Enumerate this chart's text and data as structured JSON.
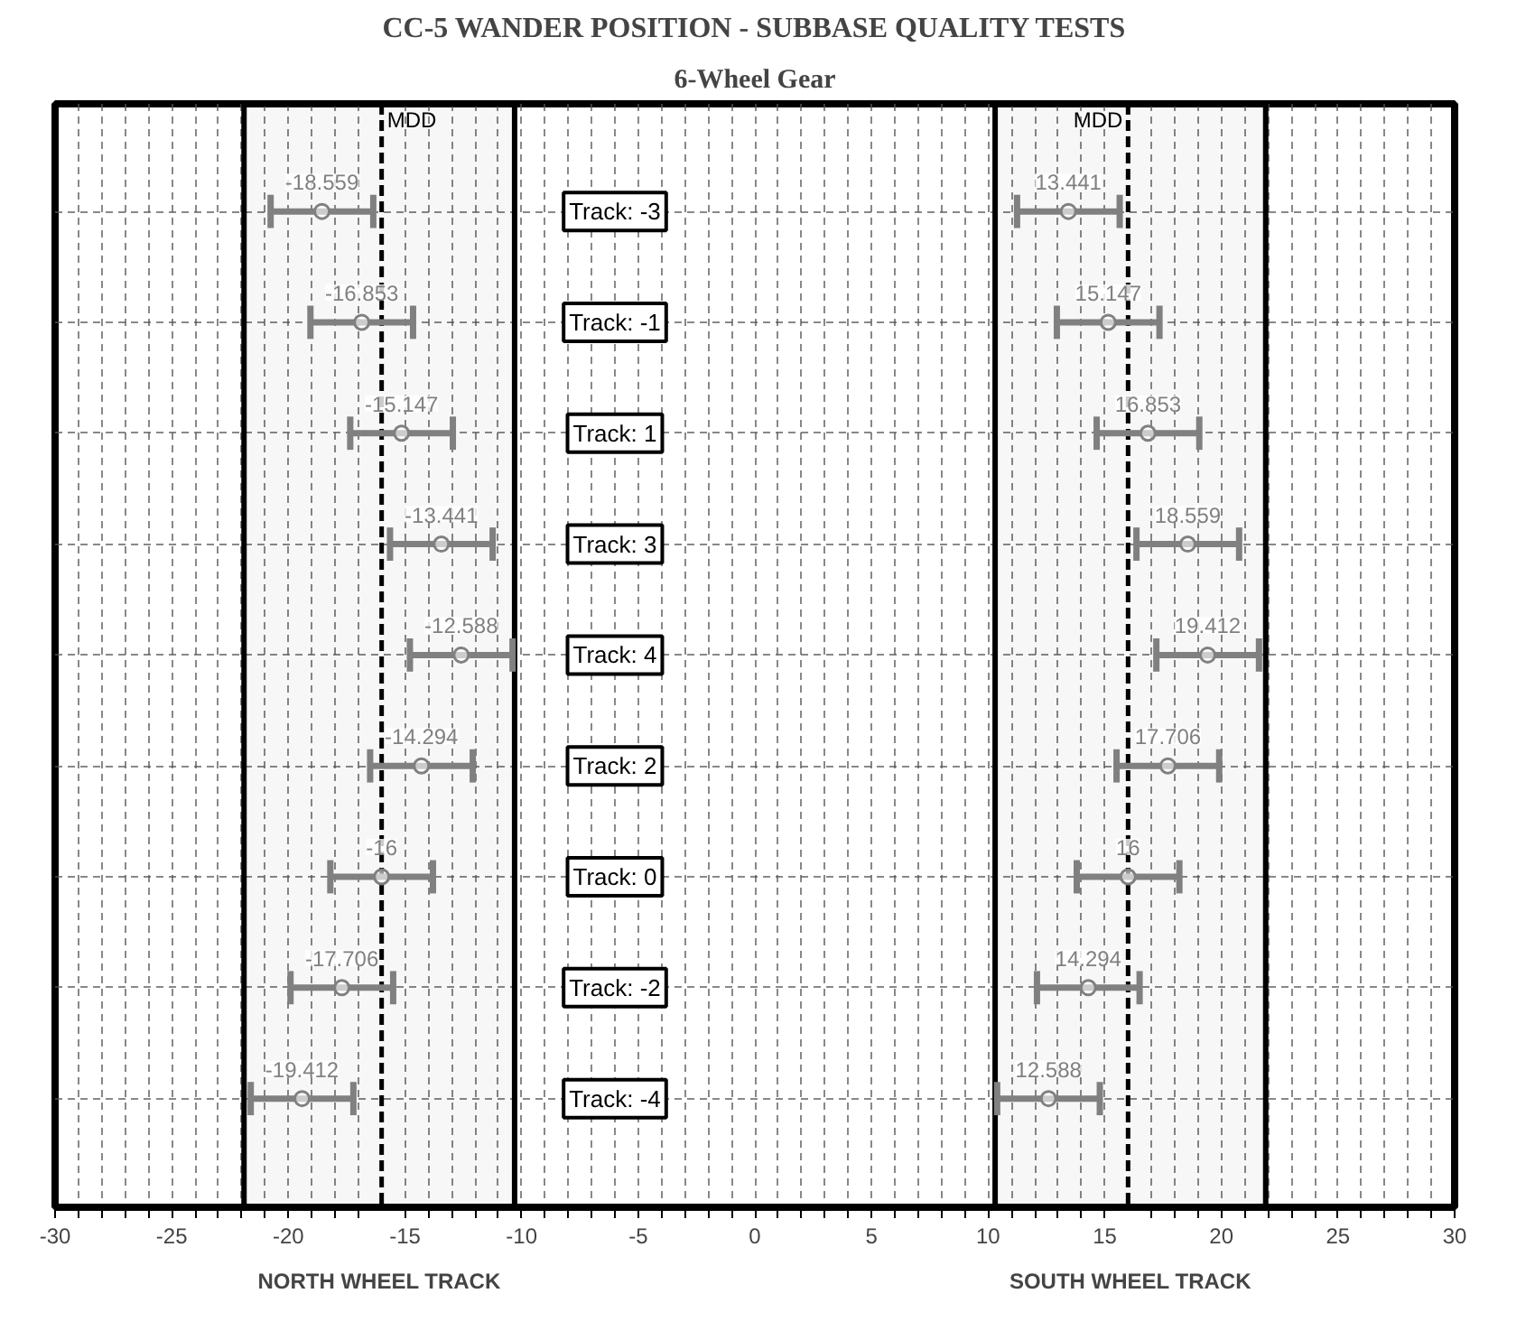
{
  "chart_data": {
    "type": "scatter",
    "orientation": "horizontal",
    "title": "CC-5 WANDER POSITION - SUBBASE QUALITY TESTS",
    "subtitle": "6-Wheel Gear",
    "categories": [
      "Track: -3",
      "Track: -1",
      "Track: 1",
      "Track: 3",
      "Track: 4",
      "Track: 2",
      "Track: 0",
      "Track: -2",
      "Track: -4"
    ],
    "series": [
      {
        "color": "#808080",
        "values": [
          -18.559,
          -16.853,
          -15.147,
          -13.441,
          -12.588,
          -14.294,
          -16,
          -17.706,
          -19.412
        ],
        "errors": [
          2.2,
          2.2,
          2.2,
          2.2,
          2.2,
          2.2,
          2.2,
          2.2,
          2.2
        ]
      },
      {
        "color": "#808080",
        "values": [
          13.441,
          15.147,
          16.853,
          18.559,
          19.412,
          17.706,
          16,
          14.294,
          12.588
        ],
        "errors": [
          2.2,
          2.2,
          2.2,
          2.2,
          2.2,
          2.2,
          2.2,
          2.2,
          2.2
        ]
      }
    ],
    "xlim": [
      -30,
      30
    ],
    "xticks": [
      -30,
      {
        "value": -29,
        "label": null
      },
      {
        "value": -28,
        "label": null
      },
      {
        "value": -27,
        "label": null
      },
      {
        "value": -26,
        "label": null
      },
      -25,
      {
        "value": -24,
        "label": null
      },
      {
        "value": -23,
        "label": null
      },
      {
        "value": -22,
        "label": null
      },
      {
        "value": -21,
        "label": null
      },
      -20,
      {
        "value": -19,
        "label": null
      },
      {
        "value": -18,
        "label": null
      },
      {
        "value": -17,
        "label": null
      },
      -15,
      {
        "value": -14,
        "label": null
      },
      {
        "value": -13,
        "label": null
      },
      {
        "value": -12,
        "label": null
      },
      {
        "value": -11,
        "label": null
      },
      -10,
      {
        "value": -9,
        "label": null
      },
      {
        "value": -8,
        "label": null
      },
      {
        "value": -7,
        "label": null
      },
      {
        "value": -6,
        "label": null
      },
      -5,
      {
        "value": -4,
        "label": null
      },
      {
        "value": -3,
        "label": null
      },
      {
        "value": -2,
        "label": null
      },
      {
        "value": -1,
        "label": null
      },
      0,
      {
        "value": 1,
        "label": null
      },
      {
        "value": 2,
        "label": null
      },
      {
        "value": 3,
        "label": null
      },
      {
        "value": 4,
        "label": null
      },
      5,
      {
        "value": 6,
        "label": null
      },
      {
        "value": 7,
        "label": null
      },
      {
        "value": 8,
        "label": null
      },
      {
        "value": 9,
        "label": null
      },
      10,
      {
        "value": 11,
        "label": null
      },
      {
        "value": 12,
        "label": null
      },
      {
        "value": 13,
        "label": null
      },
      {
        "value": 14,
        "label": null
      },
      15,
      {
        "value": 17,
        "label": null
      },
      {
        "value": 18,
        "label": null
      },
      {
        "value": 19,
        "label": null
      },
      20,
      {
        "value": 21,
        "label": null
      },
      {
        "value": 22,
        "label": null
      },
      {
        "value": 23,
        "label": null
      },
      {
        "value": 24,
        "label": null
      },
      25,
      {
        "value": 26,
        "label": null
      },
      {
        "value": 27,
        "label": null
      },
      {
        "value": 28,
        "label": null
      },
      {
        "value": 29,
        "label": null
      },
      30
    ],
    "ref_lines": [
      {
        "axis": "x",
        "value": -16,
        "label": "MDD",
        "line_style": "dashed",
        "color": "#000000"
      },
      {
        "axis": "x",
        "value": 16,
        "label": "MDD",
        "line_style": "dashed",
        "color": "#000000"
      }
    ],
    "bands": [
      {
        "axis": "x",
        "from": -21.9,
        "to": -10.3,
        "label": "NORTH WHEEL TRACK",
        "color": "#000000"
      },
      {
        "axis": "x",
        "from": 10.3,
        "to": 21.9,
        "label": "SOUTH WHEEL TRACK",
        "color": "#000000"
      }
    ],
    "data_labels": true,
    "marker": "circle",
    "grid": true,
    "tick_labels": "x"
  }
}
